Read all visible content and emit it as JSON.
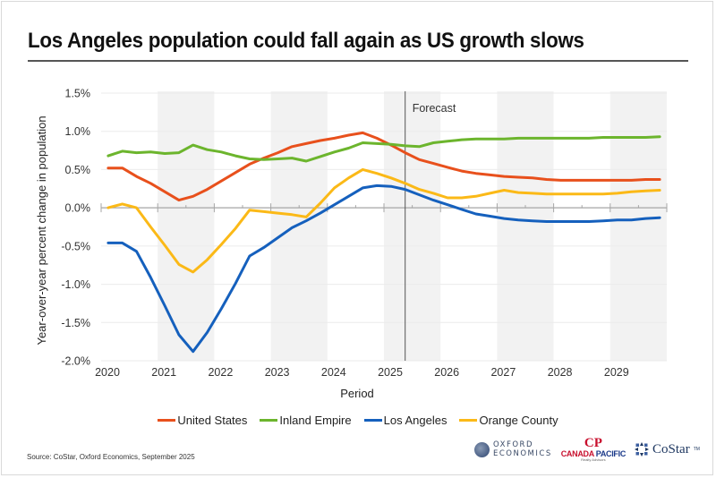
{
  "header": {
    "title": "Los Angeles population could fall again as US growth slows"
  },
  "footer": {
    "source": "Source: CoStar, Oxford Economics, September 2025",
    "logos": {
      "oxford_line1": "OXFORD",
      "oxford_line2": "ECONOMICS",
      "canada_pacific_mark": "CP",
      "canada_pacific_word1": "CANADA",
      "canada_pacific_word2": "PACIFIC",
      "canada_pacific_sub": "Realty Advisors",
      "costar": "CoStar",
      "costar_tm": "TM"
    }
  },
  "chart_data": {
    "type": "line",
    "title": "Los Angeles population could fall again as US growth slows",
    "xlabel": "Period",
    "ylabel": "Year-over-year percent change in population",
    "ylim": [
      -2.0,
      1.5
    ],
    "xlim": [
      2020,
      2030
    ],
    "y_ticks": [
      1.5,
      1.0,
      0.5,
      0.0,
      -0.5,
      -1.0,
      -1.5,
      -2.0
    ],
    "y_tick_labels": [
      "1.5%",
      "1.0%",
      "0.5%",
      "0.0%",
      "-0.5%",
      "-1.0%",
      "-1.5%",
      "-2.0%"
    ],
    "x_tick_labels": [
      "2020",
      "2021",
      "2022",
      "2023",
      "2024",
      "2025",
      "2026",
      "2027",
      "2028",
      "2029"
    ],
    "grid": true,
    "shaded_years": [
      2021,
      2023,
      2025,
      2027,
      2029
    ],
    "forecast_start": 2025.375,
    "forecast_label": "Forecast",
    "legend_position": "bottom",
    "x": [
      "2020 Q1",
      "2020 Q2",
      "2020 Q3",
      "2020 Q4",
      "2021 Q1",
      "2021 Q2",
      "2021 Q3",
      "2021 Q4",
      "2022 Q1",
      "2022 Q2",
      "2022 Q3",
      "2022 Q4",
      "2023 Q1",
      "2023 Q2",
      "2023 Q3",
      "2023 Q4",
      "2024 Q1",
      "2024 Q2",
      "2024 Q3",
      "2024 Q4",
      "2025 Q1",
      "2025 Q2",
      "2025 Q3",
      "2025 Q4",
      "2026 Q1",
      "2026 Q2",
      "2026 Q3",
      "2026 Q4",
      "2027 Q1",
      "2027 Q2",
      "2027 Q3",
      "2027 Q4",
      "2028 Q1",
      "2028 Q2",
      "2028 Q3",
      "2028 Q4",
      "2029 Q1",
      "2029 Q2",
      "2029 Q3",
      "2029 Q4"
    ],
    "series": [
      {
        "name": "United States",
        "color": "#e8501c",
        "values": [
          0.52,
          0.52,
          0.41,
          0.32,
          0.21,
          0.1,
          0.15,
          0.24,
          0.35,
          0.46,
          0.57,
          0.65,
          0.72,
          0.8,
          0.84,
          0.88,
          0.91,
          0.95,
          0.98,
          0.91,
          0.82,
          0.72,
          0.63,
          0.58,
          0.53,
          0.48,
          0.45,
          0.43,
          0.41,
          0.4,
          0.39,
          0.37,
          0.36,
          0.36,
          0.36,
          0.36,
          0.36,
          0.36,
          0.37,
          0.37
        ]
      },
      {
        "name": "Inland Empire",
        "color": "#6cb52d",
        "values": [
          0.68,
          0.74,
          0.72,
          0.73,
          0.71,
          0.72,
          0.82,
          0.76,
          0.73,
          0.68,
          0.64,
          0.63,
          0.64,
          0.65,
          0.61,
          0.67,
          0.73,
          0.78,
          0.85,
          0.84,
          0.83,
          0.81,
          0.8,
          0.85,
          0.87,
          0.89,
          0.9,
          0.9,
          0.9,
          0.91,
          0.91,
          0.91,
          0.91,
          0.91,
          0.91,
          0.92,
          0.92,
          0.92,
          0.92,
          0.93
        ]
      },
      {
        "name": "Los Angeles",
        "color": "#1560bd",
        "values": [
          -0.46,
          -0.46,
          -0.57,
          -0.91,
          -1.28,
          -1.66,
          -1.88,
          -1.63,
          -1.32,
          -0.99,
          -0.63,
          -0.52,
          -0.39,
          -0.26,
          -0.17,
          -0.07,
          0.04,
          0.15,
          0.26,
          0.29,
          0.28,
          0.24,
          0.17,
          0.1,
          0.04,
          -0.02,
          -0.08,
          -0.11,
          -0.14,
          -0.16,
          -0.17,
          -0.18,
          -0.18,
          -0.18,
          -0.18,
          -0.17,
          -0.16,
          -0.16,
          -0.14,
          -0.13
        ]
      },
      {
        "name": "Orange County",
        "color": "#fbb917",
        "values": [
          0.0,
          0.05,
          0.0,
          -0.25,
          -0.49,
          -0.74,
          -0.84,
          -0.68,
          -0.48,
          -0.27,
          -0.03,
          -0.05,
          -0.07,
          -0.09,
          -0.12,
          0.06,
          0.26,
          0.39,
          0.5,
          0.45,
          0.39,
          0.32,
          0.24,
          0.19,
          0.13,
          0.13,
          0.15,
          0.19,
          0.23,
          0.2,
          0.19,
          0.18,
          0.18,
          0.18,
          0.18,
          0.18,
          0.19,
          0.21,
          0.22,
          0.23
        ]
      }
    ]
  }
}
